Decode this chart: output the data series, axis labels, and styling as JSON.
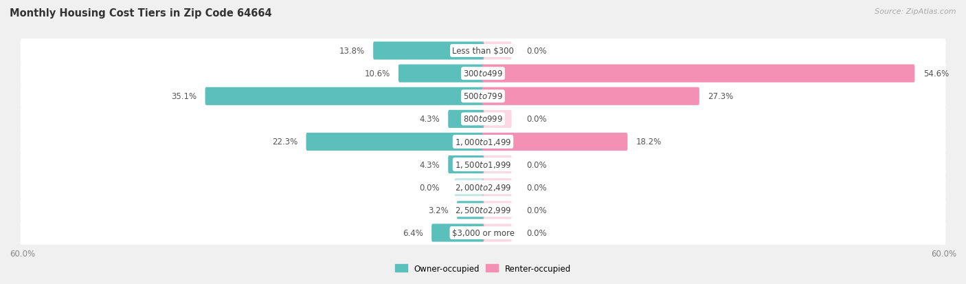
{
  "title": "Monthly Housing Cost Tiers in Zip Code 64664",
  "source": "Source: ZipAtlas.com",
  "categories": [
    "Less than $300",
    "$300 to $499",
    "$500 to $799",
    "$800 to $999",
    "$1,000 to $1,499",
    "$1,500 to $1,999",
    "$2,000 to $2,499",
    "$2,500 to $2,999",
    "$3,000 or more"
  ],
  "owner_values": [
    13.8,
    10.6,
    35.1,
    4.3,
    22.3,
    4.3,
    0.0,
    3.2,
    6.4
  ],
  "renter_values": [
    0.0,
    54.6,
    27.3,
    0.0,
    18.2,
    0.0,
    0.0,
    0.0,
    0.0
  ],
  "owner_color": "#5bbfbc",
  "renter_color": "#f490b3",
  "axis_limit": 60.0,
  "axis_label_left": "60.0%",
  "axis_label_right": "60.0%",
  "background_color": "#f0f0f0",
  "row_bg_color": "#ffffff",
  "title_fontsize": 10.5,
  "source_fontsize": 8,
  "label_fontsize": 8.5,
  "category_fontsize": 8.5,
  "bar_height": 0.55,
  "legend_owner": "Owner-occupied",
  "legend_renter": "Renter-occupied"
}
